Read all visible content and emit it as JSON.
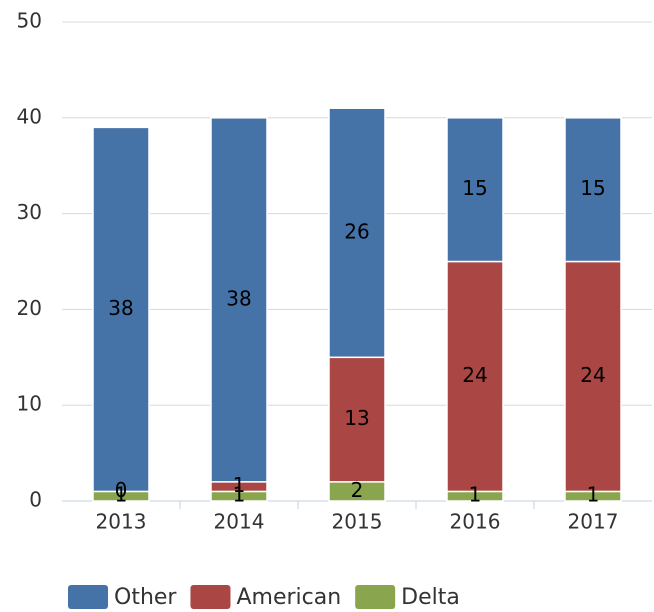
{
  "chart_data": {
    "type": "bar",
    "stacked": true,
    "categories": [
      "2013",
      "2014",
      "2015",
      "2016",
      "2017"
    ],
    "series": [
      {
        "name": "Other",
        "color": "#4572a7",
        "values": [
          38,
          38,
          26,
          15,
          15
        ]
      },
      {
        "name": "American",
        "color": "#aa4643",
        "values": [
          0,
          1,
          13,
          24,
          24
        ]
      },
      {
        "name": "Delta",
        "color": "#89a54e",
        "values": [
          1,
          1,
          2,
          1,
          1
        ]
      }
    ],
    "ylim": [
      0,
      50
    ],
    "yticks": [
      0,
      10,
      20,
      30,
      40,
      50
    ],
    "grid": true,
    "legend": "bottom"
  }
}
